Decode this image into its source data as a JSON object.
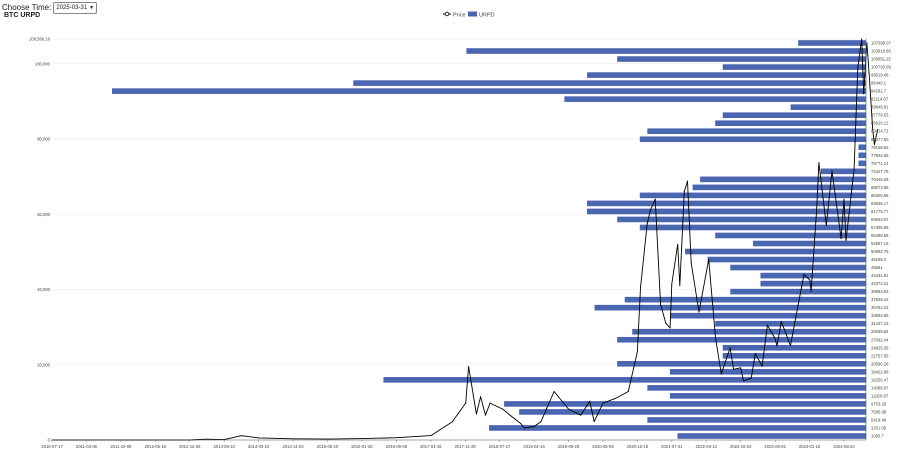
{
  "controls": {
    "label": "Choose Time:",
    "selected_date": "2025-03-31"
  },
  "chart_data": {
    "type": "line",
    "title": "BTC URPD",
    "legend": {
      "placement": "top-center",
      "items": [
        {
          "name": "Price",
          "kind": "line",
          "color": "#000000"
        },
        {
          "name": "URPD",
          "kind": "bar",
          "color": "#4a66b1"
        }
      ]
    },
    "ylim": [
      0,
      106566.16
    ],
    "y_ticks": [
      {
        "value": 0,
        "label": "0"
      },
      {
        "value": 20000,
        "label": "20,000"
      },
      {
        "value": 40000,
        "label": "40,000"
      },
      {
        "value": 60000,
        "label": "60,000"
      },
      {
        "value": 80000,
        "label": "80,000"
      },
      {
        "value": 100000,
        "label": "100,000"
      },
      {
        "value": 106566.16,
        "label": "106,566.16"
      }
    ],
    "x_ticks": [
      "2010-07-17",
      "2011-03-06",
      "2011-10-08",
      "2012-05-16",
      "2012-12-28",
      "2013-08-10",
      "2014-03-23",
      "2014-11-03",
      "2015-06-20",
      "2016-01-30",
      "2016-09-05",
      "2017-04-16",
      "2017-11-28",
      "2018-07-27",
      "2019-02-16",
      "2019-09-28",
      "2020-05-09",
      "2020-12-19",
      "2021-07-31",
      "2022-03-12",
      "2022-10-22",
      "2023-06-02",
      "2024-01-15",
      "2024-08-24"
    ],
    "price_series": {
      "name": "Price",
      "points": [
        [
          "2010-07-17",
          0.05
        ],
        [
          "2011-03-06",
          0.9
        ],
        [
          "2011-06-08",
          25
        ],
        [
          "2011-10-08",
          4
        ],
        [
          "2012-05-16",
          5
        ],
        [
          "2012-12-28",
          13
        ],
        [
          "2013-04-10",
          200
        ],
        [
          "2013-08-10",
          100
        ],
        [
          "2013-11-30",
          1150
        ],
        [
          "2014-03-23",
          560
        ],
        [
          "2014-11-03",
          330
        ],
        [
          "2015-06-20",
          245
        ],
        [
          "2016-01-30",
          380
        ],
        [
          "2016-09-05",
          610
        ],
        [
          "2017-04-16",
          1170
        ],
        [
          "2017-09-01",
          4800
        ],
        [
          "2017-11-28",
          9800
        ],
        [
          "2017-12-17",
          19500
        ],
        [
          "2018-02-06",
          6900
        ],
        [
          "2018-03-05",
          11500
        ],
        [
          "2018-04-06",
          6600
        ],
        [
          "2018-05-05",
          9800
        ],
        [
          "2018-07-27",
          8200
        ],
        [
          "2018-09-15",
          6500
        ],
        [
          "2018-11-20",
          4400
        ],
        [
          "2018-12-15",
          3200
        ],
        [
          "2019-02-16",
          3600
        ],
        [
          "2019-04-02",
          4900
        ],
        [
          "2019-06-26",
          12900
        ],
        [
          "2019-09-28",
          8200
        ],
        [
          "2019-12-17",
          6600
        ],
        [
          "2020-02-13",
          10300
        ],
        [
          "2020-03-13",
          4900
        ],
        [
          "2020-05-09",
          9800
        ],
        [
          "2020-07-27",
          11000
        ],
        [
          "2020-10-21",
          12900
        ],
        [
          "2020-12-19",
          23500
        ],
        [
          "2021-01-08",
          40500
        ],
        [
          "2021-02-21",
          57500
        ],
        [
          "2021-03-13",
          61000
        ],
        [
          "2021-04-14",
          64000
        ],
        [
          "2021-05-19",
          36000
        ],
        [
          "2021-06-22",
          31000
        ],
        [
          "2021-07-20",
          29800
        ],
        [
          "2021-07-31",
          41500
        ],
        [
          "2021-09-07",
          52000
        ],
        [
          "2021-09-21",
          41000
        ],
        [
          "2021-10-20",
          66000
        ],
        [
          "2021-11-10",
          68800
        ],
        [
          "2021-12-04",
          47000
        ],
        [
          "2022-01-24",
          34000
        ],
        [
          "2022-03-28",
          48000
        ],
        [
          "2022-05-12",
          27000
        ],
        [
          "2022-06-18",
          17600
        ],
        [
          "2022-08-14",
          24500
        ],
        [
          "2022-09-06",
          18800
        ],
        [
          "2022-10-22",
          19200
        ],
        [
          "2022-11-09",
          15700
        ],
        [
          "2022-12-30",
          16500
        ],
        [
          "2023-01-25",
          23000
        ],
        [
          "2023-03-10",
          19600
        ],
        [
          "2023-04-14",
          30500
        ],
        [
          "2023-06-02",
          27000
        ],
        [
          "2023-06-15",
          25000
        ],
        [
          "2023-07-13",
          31500
        ],
        [
          "2023-09-11",
          25100
        ],
        [
          "2023-10-24",
          34500
        ],
        [
          "2023-12-08",
          44000
        ],
        [
          "2024-01-15",
          42500
        ],
        [
          "2024-01-23",
          39500
        ],
        [
          "2024-02-28",
          61000
        ],
        [
          "2024-03-14",
          73700
        ],
        [
          "2024-05-01",
          57000
        ],
        [
          "2024-06-07",
          71500
        ],
        [
          "2024-08-05",
          53500
        ],
        [
          "2024-08-24",
          64000
        ],
        [
          "2024-09-06",
          53000
        ],
        [
          "2024-10-29",
          72000
        ],
        [
          "2024-11-22",
          99000
        ],
        [
          "2024-12-17",
          106500
        ],
        [
          "2024-12-30",
          92000
        ],
        [
          "2025-01-20",
          105500
        ],
        [
          "2025-02-03",
          97500
        ],
        [
          "2025-02-27",
          82500
        ],
        [
          "2025-03-10",
          78500
        ],
        [
          "2025-03-31",
          82500
        ]
      ]
    },
    "urpd_series": {
      "name": "URPD",
      "levels": [
        [
          "107398.07",
          0.09
        ],
        [
          "103918.66",
          0.53
        ],
        [
          "100851.25",
          0.33
        ],
        [
          "100793.09",
          0.19
        ],
        [
          "98619.48",
          0.37
        ],
        [
          "95440.1",
          0.68
        ],
        [
          "94281.7",
          1.0
        ],
        [
          "92114.07",
          0.4
        ],
        [
          "89846.91",
          0.1
        ],
        [
          "87779.53",
          0.19
        ],
        [
          "85810.12",
          0.2
        ],
        [
          "83414.72",
          0.29
        ],
        [
          "81077.50",
          0.3
        ],
        [
          "79158.63",
          0.01
        ],
        [
          "77842.65",
          0.01
        ],
        [
          "75771.14",
          0.01
        ],
        [
          "73427.76",
          0.06
        ],
        [
          "70445.26",
          0.22
        ],
        [
          "68073.96",
          0.23
        ],
        [
          "66300.68",
          0.3
        ],
        [
          "63835.17",
          0.37
        ],
        [
          "61775.77",
          0.37
        ],
        [
          "59653.57",
          0.33
        ],
        [
          "57408.86",
          0.3
        ],
        [
          "55288.58",
          0.2
        ],
        [
          "52957.18",
          0.15
        ],
        [
          "50592.75",
          0.24
        ],
        [
          "48199.4",
          0.21
        ],
        [
          "45661",
          0.18
        ],
        [
          "44431.81",
          0.14
        ],
        [
          "42374.21",
          0.14
        ],
        [
          "39993.83",
          0.18
        ],
        [
          "37928.42",
          0.32
        ],
        [
          "35762.22",
          0.36
        ],
        [
          "33594.65",
          0.26
        ],
        [
          "31427.23",
          0.2
        ],
        [
          "29259.84",
          0.31
        ],
        [
          "27092.44",
          0.33
        ],
        [
          "24925.05",
          0.19
        ],
        [
          "22757.65",
          0.19
        ],
        [
          "20590.26",
          0.33
        ],
        [
          "18422.86",
          0.26
        ],
        [
          "16255.47",
          0.64
        ],
        [
          "14088.07",
          0.29
        ],
        [
          "11920.67",
          0.26
        ],
        [
          "9753.28",
          0.48
        ],
        [
          "7585.88",
          0.46
        ],
        [
          "5418.49",
          0.29
        ],
        [
          "3251.09",
          0.5
        ],
        [
          "1083.7",
          0.25
        ]
      ]
    }
  }
}
